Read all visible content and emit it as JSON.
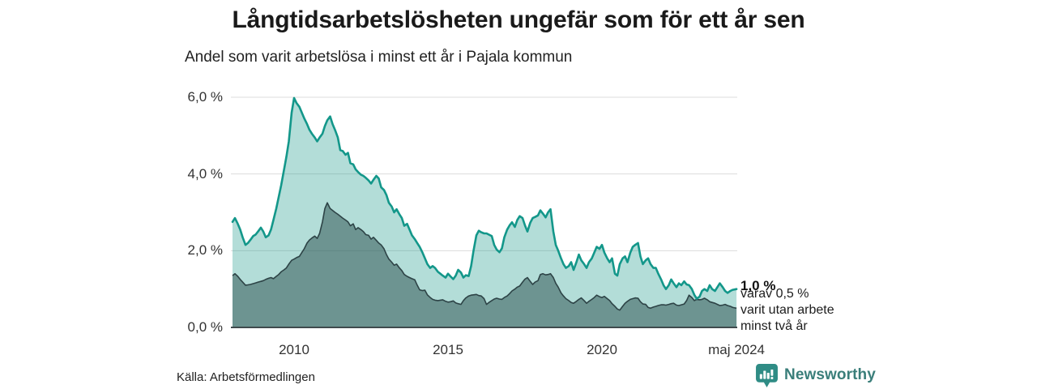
{
  "header": {
    "title": "Långtidsarbetslösheten ungefär som för ett år sen",
    "subtitle": "Andel som varit arbetslösa i minst ett år i Pajala kommun"
  },
  "annotations": {
    "end_value_total": "1,0 %",
    "end_detail_lines": [
      "varav 0,5 %",
      "varit utan arbete",
      "minst två år"
    ]
  },
  "footer": {
    "source": "Källa: Arbetsförmedlingen",
    "brand": "Newsworthy"
  },
  "colors": {
    "accent_teal_line": "#13978a",
    "area_light_fill": "#b3dcd6",
    "area_dark_fill": "#6f9c96",
    "dark_line": "#2d4346",
    "grid": "#dcdcdc",
    "axis": "#3f4b4d",
    "text": "#1d1d1d",
    "brand_teal": "#2f8c85"
  },
  "chart_data": {
    "type": "area",
    "title": "Långtidsarbetslösheten ungefär som för ett år sen",
    "subtitle": "Andel som varit arbetslösa i minst ett år i Pajala kommun",
    "x_unit": "decimal year, monthly values",
    "xlim": [
      2008.0,
      2024.4
    ],
    "ylim": [
      0,
      6.3
    ],
    "grid": true,
    "legend": "none",
    "yticks": [
      {
        "value": 0,
        "label": "0,0 %"
      },
      {
        "value": 2,
        "label": "2,0 %"
      },
      {
        "value": 4,
        "label": "4,0 %"
      },
      {
        "value": 6,
        "label": "6,0 %"
      }
    ],
    "xticks": [
      {
        "value": 2010,
        "label": "2010"
      },
      {
        "value": 2015,
        "label": "2015"
      },
      {
        "value": 2020,
        "label": "2020"
      },
      {
        "value": 2024.37,
        "label": "maj 2024"
      }
    ],
    "x": [
      2008.0,
      2008.08,
      2008.17,
      2008.25,
      2008.33,
      2008.42,
      2008.5,
      2008.58,
      2008.67,
      2008.75,
      2008.83,
      2008.92,
      2009.0,
      2009.08,
      2009.17,
      2009.25,
      2009.33,
      2009.42,
      2009.5,
      2009.58,
      2009.67,
      2009.75,
      2009.83,
      2009.92,
      2010.0,
      2010.08,
      2010.17,
      2010.25,
      2010.33,
      2010.42,
      2010.5,
      2010.58,
      2010.67,
      2010.75,
      2010.83,
      2010.92,
      2011.0,
      2011.08,
      2011.17,
      2011.25,
      2011.33,
      2011.42,
      2011.5,
      2011.58,
      2011.67,
      2011.75,
      2011.83,
      2011.92,
      2012.0,
      2012.08,
      2012.17,
      2012.25,
      2012.33,
      2012.42,
      2012.5,
      2012.58,
      2012.67,
      2012.75,
      2012.83,
      2012.92,
      2013.0,
      2013.08,
      2013.17,
      2013.25,
      2013.33,
      2013.42,
      2013.5,
      2013.58,
      2013.67,
      2013.75,
      2013.83,
      2013.92,
      2014.0,
      2014.08,
      2014.17,
      2014.25,
      2014.33,
      2014.42,
      2014.5,
      2014.58,
      2014.67,
      2014.75,
      2014.83,
      2014.92,
      2015.0,
      2015.08,
      2015.17,
      2015.25,
      2015.33,
      2015.42,
      2015.5,
      2015.58,
      2015.67,
      2015.75,
      2015.83,
      2015.92,
      2016.0,
      2016.08,
      2016.17,
      2016.25,
      2016.33,
      2016.42,
      2016.5,
      2016.58,
      2016.67,
      2016.75,
      2016.83,
      2016.92,
      2017.0,
      2017.08,
      2017.17,
      2017.25,
      2017.33,
      2017.42,
      2017.5,
      2017.58,
      2017.67,
      2017.75,
      2017.83,
      2017.92,
      2018.0,
      2018.08,
      2018.17,
      2018.25,
      2018.33,
      2018.42,
      2018.5,
      2018.58,
      2018.67,
      2018.75,
      2018.83,
      2018.92,
      2019.0,
      2019.08,
      2019.17,
      2019.25,
      2019.33,
      2019.42,
      2019.5,
      2019.58,
      2019.67,
      2019.75,
      2019.83,
      2019.92,
      2020.0,
      2020.08,
      2020.17,
      2020.25,
      2020.33,
      2020.42,
      2020.5,
      2020.58,
      2020.67,
      2020.75,
      2020.83,
      2020.92,
      2021.0,
      2021.08,
      2021.17,
      2021.25,
      2021.33,
      2021.42,
      2021.5,
      2021.58,
      2021.67,
      2021.75,
      2021.83,
      2021.92,
      2022.0,
      2022.08,
      2022.17,
      2022.25,
      2022.33,
      2022.42,
      2022.5,
      2022.58,
      2022.67,
      2022.75,
      2022.83,
      2022.92,
      2023.0,
      2023.08,
      2023.17,
      2023.25,
      2023.33,
      2023.42,
      2023.5,
      2023.58,
      2023.67,
      2023.75,
      2023.83,
      2023.92,
      2024.0,
      2024.08,
      2024.17,
      2024.25,
      2024.37
    ],
    "series": [
      {
        "name": "Andel arbetslösa minst ett år",
        "end_label": "1,0 %",
        "values": [
          2.75,
          2.85,
          2.7,
          2.55,
          2.35,
          2.15,
          2.2,
          2.28,
          2.38,
          2.42,
          2.5,
          2.6,
          2.5,
          2.35,
          2.4,
          2.55,
          2.8,
          3.1,
          3.4,
          3.7,
          4.1,
          4.45,
          4.85,
          5.6,
          5.98,
          5.85,
          5.75,
          5.6,
          5.45,
          5.3,
          5.15,
          5.05,
          4.95,
          4.85,
          4.95,
          5.05,
          5.25,
          5.4,
          5.5,
          5.3,
          5.15,
          4.95,
          4.62,
          4.6,
          4.5,
          4.55,
          4.28,
          4.25,
          4.12,
          4.05,
          3.98,
          3.95,
          3.9,
          3.83,
          3.75,
          3.85,
          3.95,
          3.88,
          3.65,
          3.58,
          3.45,
          3.25,
          3.15,
          3.0,
          3.08,
          2.95,
          2.85,
          2.65,
          2.7,
          2.55,
          2.4,
          2.3,
          2.2,
          2.1,
          1.95,
          1.8,
          1.65,
          1.55,
          1.6,
          1.55,
          1.45,
          1.4,
          1.35,
          1.3,
          1.4,
          1.33,
          1.26,
          1.35,
          1.5,
          1.43,
          1.3,
          1.36,
          1.34,
          1.6,
          2.0,
          2.4,
          2.52,
          2.48,
          2.45,
          2.45,
          2.42,
          2.38,
          2.15,
          2.03,
          1.96,
          2.06,
          2.35,
          2.55,
          2.66,
          2.74,
          2.62,
          2.8,
          2.9,
          2.85,
          2.66,
          2.5,
          2.73,
          2.85,
          2.88,
          2.92,
          3.05,
          2.97,
          2.87,
          3.0,
          3.08,
          2.5,
          2.15,
          2.0,
          1.8,
          1.65,
          1.55,
          1.6,
          1.7,
          1.5,
          1.7,
          1.9,
          1.75,
          1.65,
          1.55,
          1.7,
          1.8,
          1.95,
          2.1,
          2.05,
          2.15,
          1.95,
          1.8,
          1.7,
          1.8,
          1.4,
          1.35,
          1.65,
          1.8,
          1.85,
          1.7,
          1.95,
          2.1,
          2.15,
          2.2,
          1.85,
          1.65,
          1.75,
          1.8,
          1.65,
          1.55,
          1.55,
          1.4,
          1.25,
          1.1,
          1.0,
          1.1,
          1.25,
          1.15,
          1.05,
          1.15,
          1.1,
          1.2,
          1.12,
          1.1,
          1.0,
          0.85,
          0.75,
          0.8,
          0.95,
          1.0,
          0.95,
          1.1,
          1.0,
          0.95,
          1.05,
          1.15,
          1.05,
          0.95,
          0.9,
          0.95,
          0.98,
          1.0
        ]
      },
      {
        "name": "varav utan arbete minst två år",
        "end_label": "varav 0,5 %",
        "values": [
          1.35,
          1.4,
          1.33,
          1.25,
          1.18,
          1.1,
          1.11,
          1.12,
          1.14,
          1.16,
          1.18,
          1.2,
          1.22,
          1.25,
          1.28,
          1.3,
          1.27,
          1.33,
          1.38,
          1.45,
          1.5,
          1.55,
          1.65,
          1.75,
          1.78,
          1.82,
          1.85,
          1.95,
          2.05,
          2.2,
          2.28,
          2.33,
          2.38,
          2.32,
          2.45,
          2.75,
          3.1,
          3.25,
          3.1,
          3.05,
          3.0,
          2.95,
          2.9,
          2.85,
          2.8,
          2.75,
          2.65,
          2.7,
          2.55,
          2.6,
          2.55,
          2.5,
          2.42,
          2.4,
          2.3,
          2.35,
          2.27,
          2.2,
          2.15,
          2.05,
          1.9,
          1.78,
          1.7,
          1.62,
          1.65,
          1.55,
          1.48,
          1.38,
          1.33,
          1.3,
          1.27,
          1.24,
          1.1,
          0.98,
          0.96,
          0.97,
          0.85,
          0.78,
          0.73,
          0.71,
          0.7,
          0.71,
          0.72,
          0.68,
          0.66,
          0.67,
          0.69,
          0.64,
          0.62,
          0.6,
          0.7,
          0.77,
          0.82,
          0.84,
          0.85,
          0.86,
          0.83,
          0.82,
          0.75,
          0.6,
          0.65,
          0.7,
          0.74,
          0.76,
          0.74,
          0.73,
          0.78,
          0.82,
          0.88,
          0.95,
          1.0,
          1.05,
          1.08,
          1.18,
          1.26,
          1.3,
          1.2,
          1.12,
          1.18,
          1.22,
          1.38,
          1.4,
          1.37,
          1.38,
          1.4,
          1.3,
          1.15,
          1.05,
          0.9,
          0.82,
          0.75,
          0.7,
          0.65,
          0.63,
          0.68,
          0.73,
          0.77,
          0.7,
          0.63,
          0.68,
          0.73,
          0.78,
          0.84,
          0.8,
          0.78,
          0.81,
          0.75,
          0.7,
          0.62,
          0.55,
          0.48,
          0.45,
          0.55,
          0.63,
          0.68,
          0.73,
          0.75,
          0.77,
          0.76,
          0.67,
          0.61,
          0.6,
          0.52,
          0.5,
          0.53,
          0.55,
          0.57,
          0.59,
          0.59,
          0.58,
          0.6,
          0.62,
          0.63,
          0.58,
          0.57,
          0.59,
          0.61,
          0.7,
          0.84,
          0.78,
          0.7,
          0.73,
          0.72,
          0.73,
          0.76,
          0.72,
          0.67,
          0.65,
          0.63,
          0.6,
          0.57,
          0.58,
          0.6,
          0.57,
          0.55,
          0.52,
          0.5
        ]
      }
    ]
  }
}
